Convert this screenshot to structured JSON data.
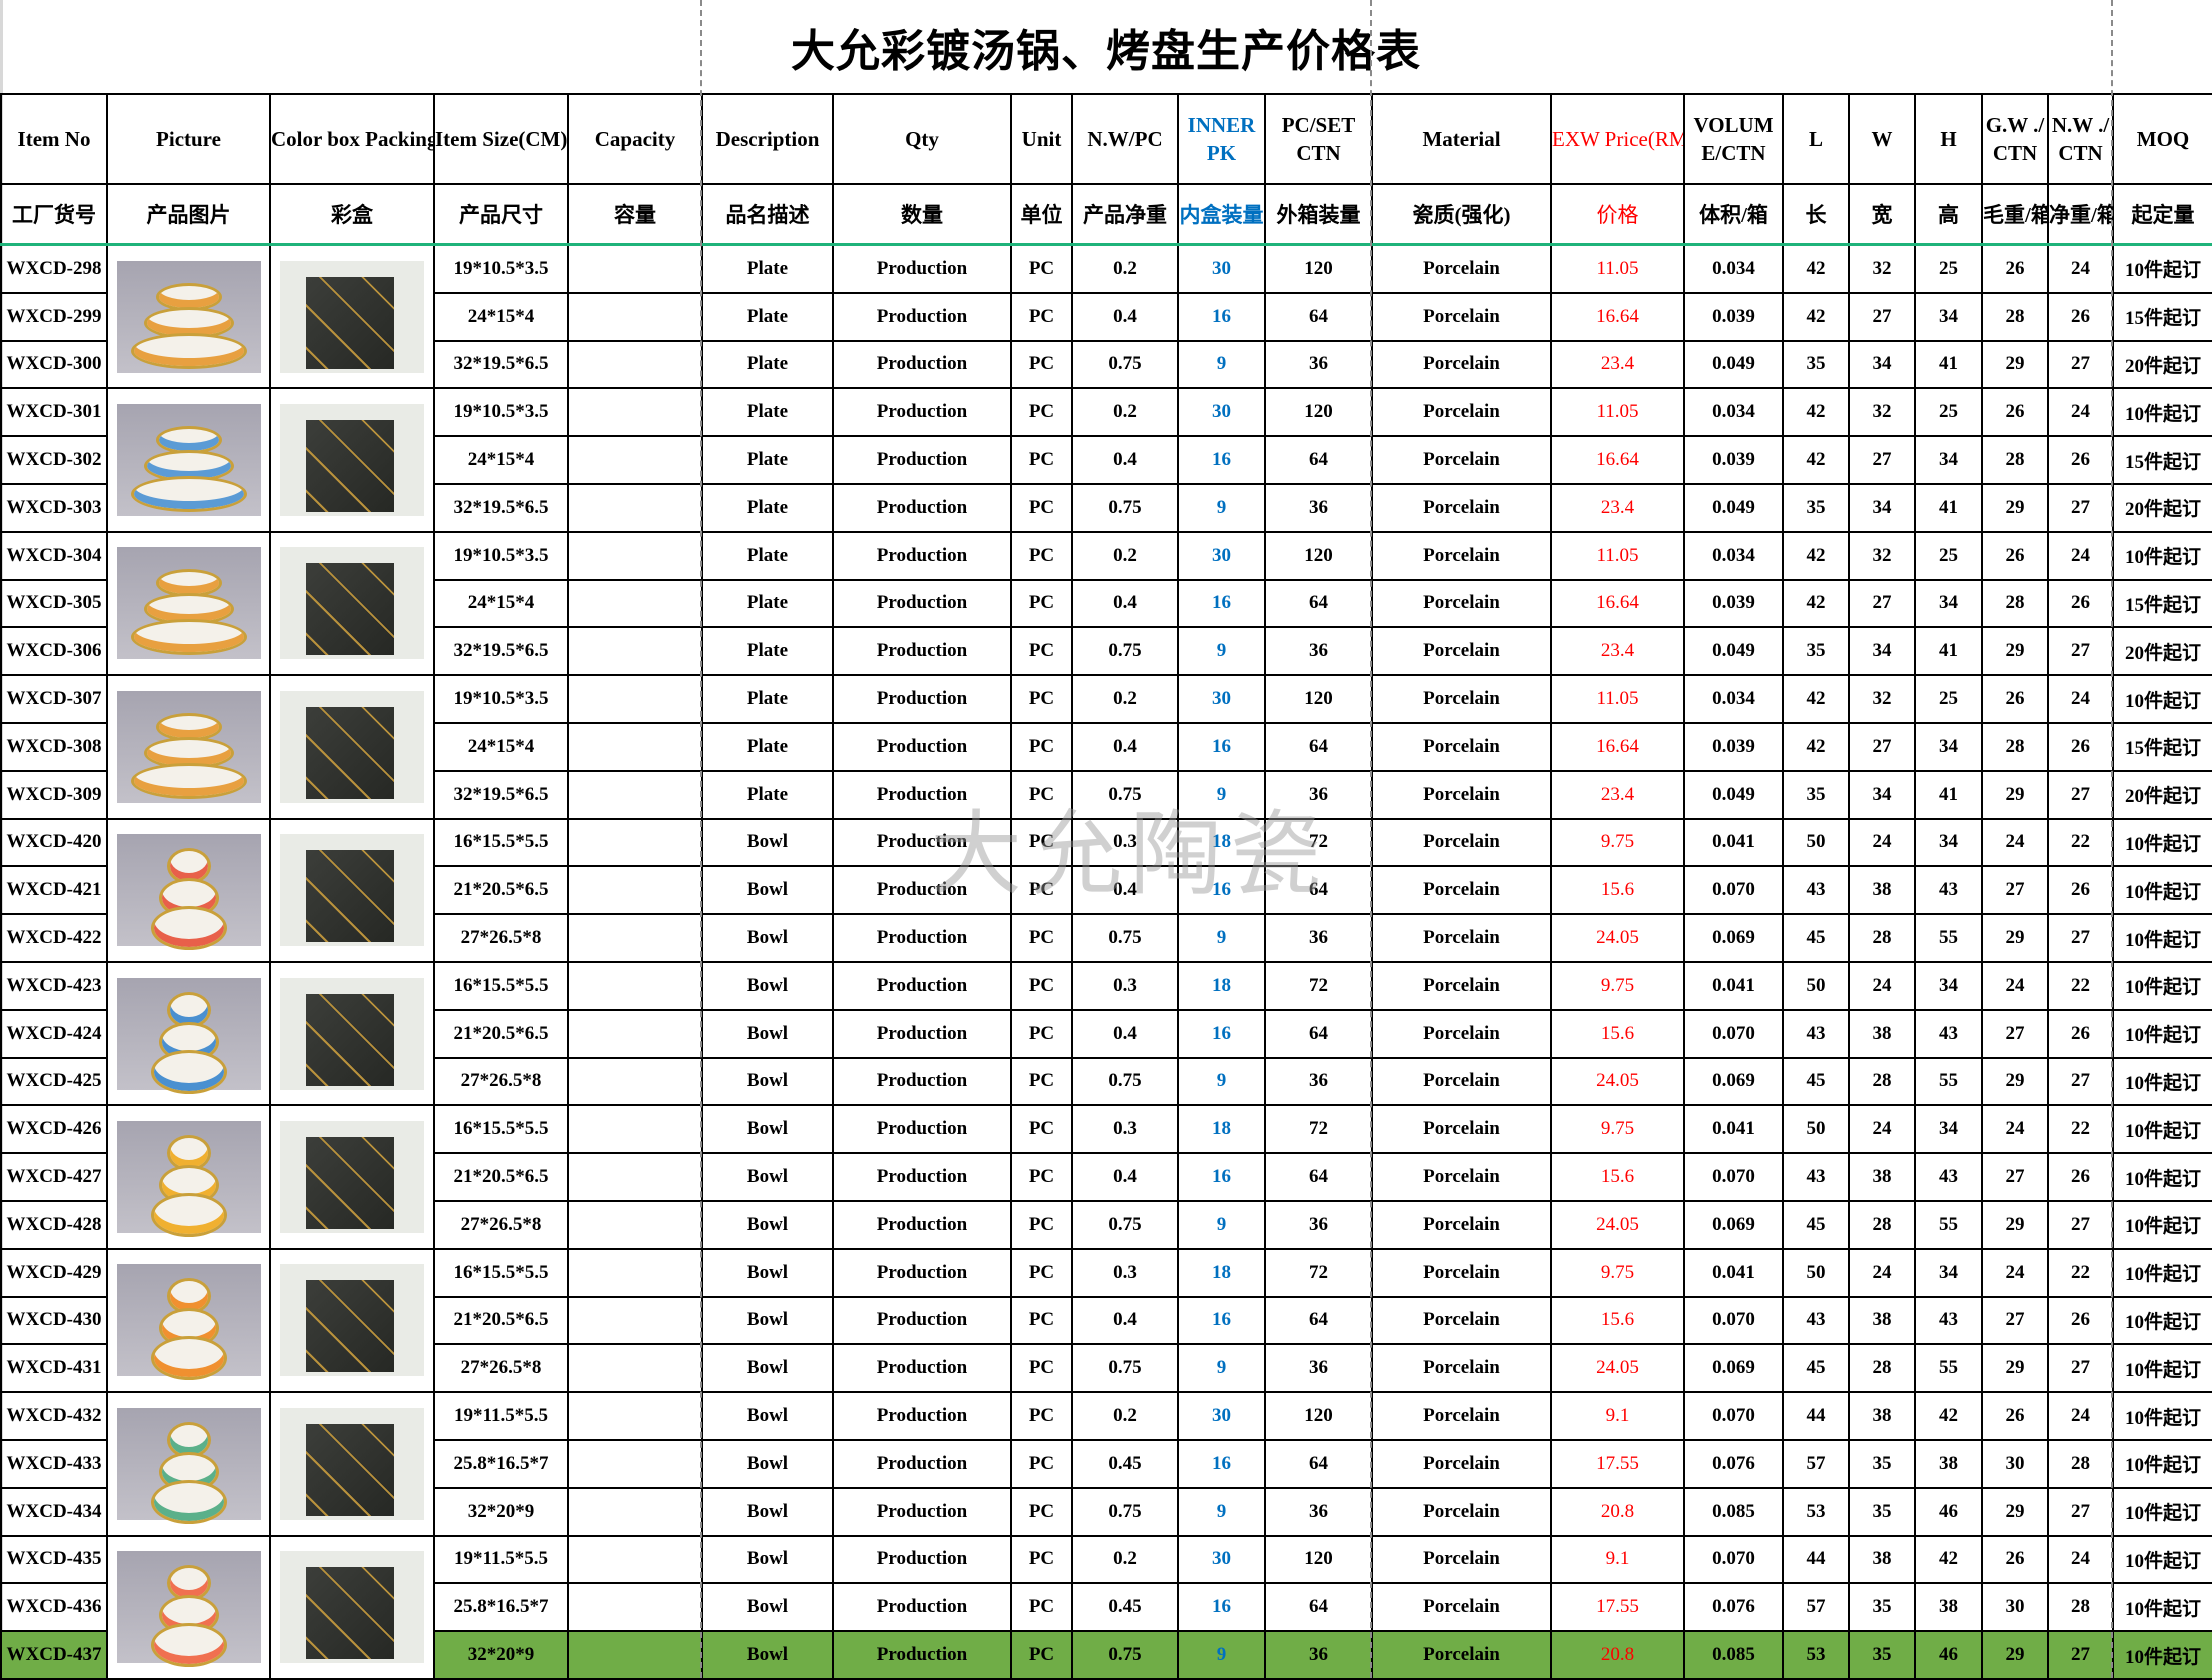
{
  "title": "大允彩镀汤锅、烤盘生产价格表",
  "watermark": "大允陶瓷",
  "colors": {
    "inner_pk": "#0070c0",
    "price": "#ff0000",
    "highlight_row": "#70ad47",
    "header_rule": "#1fb37a"
  },
  "header_en": [
    "Item No",
    "Picture",
    "Color box Packing",
    "Item Size(CM)",
    "Capacity",
    "Description",
    "Qty",
    "Unit",
    "N.W/PC",
    "INNER PK",
    "PC/SET CTN",
    "Material",
    "EXW Price(RMB)",
    "VOLUM E/CTN",
    "L",
    "W",
    "H",
    "G.W ./ CTN",
    "N.W ./ CTN",
    "MOQ"
  ],
  "header_cn": [
    "工厂货号",
    "产品图片",
    "彩盒",
    "产品尺寸",
    "容量",
    "品名描述",
    "数量",
    "单位",
    "产品净重",
    "内盒装量",
    "外箱装量",
    "瓷质(强化)",
    "价格",
    "体积/箱",
    "长",
    "宽",
    "高",
    "毛重/箱",
    "净重/箱",
    "起定量"
  ],
  "picture_groups": [
    {
      "icon": "plate-set-photo",
      "accent": "#e8a040"
    },
    {
      "icon": "plate-set-photo",
      "accent": "#5b9bd5"
    },
    {
      "icon": "plate-set-photo",
      "accent": "#e8a040"
    },
    {
      "icon": "plate-set-photo",
      "accent": "#e8a040"
    },
    {
      "icon": "bowl-set-photo",
      "accent": "#e8604a"
    },
    {
      "icon": "bowl-set-photo",
      "accent": "#4a90d0"
    },
    {
      "icon": "bowl-set-photo",
      "accent": "#f0b030"
    },
    {
      "icon": "bowl-set-photo",
      "accent": "#f09030"
    },
    {
      "icon": "bowl-set-photo",
      "accent": "#5bb08a"
    },
    {
      "icon": "bowl-set-photo",
      "accent": "#f07050"
    },
    {
      "icon": "bowl-set-photo",
      "accent": "#f0b030"
    }
  ],
  "rows": [
    [
      "WXCD-298",
      "19*10.5*3.5",
      "",
      "Plate",
      "Production",
      "PC",
      "0.2",
      "30",
      "120",
      "Porcelain",
      "11.05",
      "0.034",
      "42",
      "32",
      "25",
      "26",
      "24",
      "10件起订"
    ],
    [
      "WXCD-299",
      "24*15*4",
      "",
      "Plate",
      "Production",
      "PC",
      "0.4",
      "16",
      "64",
      "Porcelain",
      "16.64",
      "0.039",
      "42",
      "27",
      "34",
      "28",
      "26",
      "15件起订"
    ],
    [
      "WXCD-300",
      "32*19.5*6.5",
      "",
      "Plate",
      "Production",
      "PC",
      "0.75",
      "9",
      "36",
      "Porcelain",
      "23.4",
      "0.049",
      "35",
      "34",
      "41",
      "29",
      "27",
      "20件起订"
    ],
    [
      "WXCD-301",
      "19*10.5*3.5",
      "",
      "Plate",
      "Production",
      "PC",
      "0.2",
      "30",
      "120",
      "Porcelain",
      "11.05",
      "0.034",
      "42",
      "32",
      "25",
      "26",
      "24",
      "10件起订"
    ],
    [
      "WXCD-302",
      "24*15*4",
      "",
      "Plate",
      "Production",
      "PC",
      "0.4",
      "16",
      "64",
      "Porcelain",
      "16.64",
      "0.039",
      "42",
      "27",
      "34",
      "28",
      "26",
      "15件起订"
    ],
    [
      "WXCD-303",
      "32*19.5*6.5",
      "",
      "Plate",
      "Production",
      "PC",
      "0.75",
      "9",
      "36",
      "Porcelain",
      "23.4",
      "0.049",
      "35",
      "34",
      "41",
      "29",
      "27",
      "20件起订"
    ],
    [
      "WXCD-304",
      "19*10.5*3.5",
      "",
      "Plate",
      "Production",
      "PC",
      "0.2",
      "30",
      "120",
      "Porcelain",
      "11.05",
      "0.034",
      "42",
      "32",
      "25",
      "26",
      "24",
      "10件起订"
    ],
    [
      "WXCD-305",
      "24*15*4",
      "",
      "Plate",
      "Production",
      "PC",
      "0.4",
      "16",
      "64",
      "Porcelain",
      "16.64",
      "0.039",
      "42",
      "27",
      "34",
      "28",
      "26",
      "15件起订"
    ],
    [
      "WXCD-306",
      "32*19.5*6.5",
      "",
      "Plate",
      "Production",
      "PC",
      "0.75",
      "9",
      "36",
      "Porcelain",
      "23.4",
      "0.049",
      "35",
      "34",
      "41",
      "29",
      "27",
      "20件起订"
    ],
    [
      "WXCD-307",
      "19*10.5*3.5",
      "",
      "Plate",
      "Production",
      "PC",
      "0.2",
      "30",
      "120",
      "Porcelain",
      "11.05",
      "0.034",
      "42",
      "32",
      "25",
      "26",
      "24",
      "10件起订"
    ],
    [
      "WXCD-308",
      "24*15*4",
      "",
      "Plate",
      "Production",
      "PC",
      "0.4",
      "16",
      "64",
      "Porcelain",
      "16.64",
      "0.039",
      "42",
      "27",
      "34",
      "28",
      "26",
      "15件起订"
    ],
    [
      "WXCD-309",
      "32*19.5*6.5",
      "",
      "Plate",
      "Production",
      "PC",
      "0.75",
      "9",
      "36",
      "Porcelain",
      "23.4",
      "0.049",
      "35",
      "34",
      "41",
      "29",
      "27",
      "20件起订"
    ],
    [
      "WXCD-420",
      "16*15.5*5.5",
      "",
      "Bowl",
      "Production",
      "PC",
      "0.3",
      "18",
      "72",
      "Porcelain",
      "9.75",
      "0.041",
      "50",
      "24",
      "34",
      "24",
      "22",
      "10件起订"
    ],
    [
      "WXCD-421",
      "21*20.5*6.5",
      "",
      "Bowl",
      "Production",
      "PC",
      "0.4",
      "16",
      "64",
      "Porcelain",
      "15.6",
      "0.070",
      "43",
      "38",
      "43",
      "27",
      "26",
      "10件起订"
    ],
    [
      "WXCD-422",
      "27*26.5*8",
      "",
      "Bowl",
      "Production",
      "PC",
      "0.75",
      "9",
      "36",
      "Porcelain",
      "24.05",
      "0.069",
      "45",
      "28",
      "55",
      "29",
      "27",
      "10件起订"
    ],
    [
      "WXCD-423",
      "16*15.5*5.5",
      "",
      "Bowl",
      "Production",
      "PC",
      "0.3",
      "18",
      "72",
      "Porcelain",
      "9.75",
      "0.041",
      "50",
      "24",
      "34",
      "24",
      "22",
      "10件起订"
    ],
    [
      "WXCD-424",
      "21*20.5*6.5",
      "",
      "Bowl",
      "Production",
      "PC",
      "0.4",
      "16",
      "64",
      "Porcelain",
      "15.6",
      "0.070",
      "43",
      "38",
      "43",
      "27",
      "26",
      "10件起订"
    ],
    [
      "WXCD-425",
      "27*26.5*8",
      "",
      "Bowl",
      "Production",
      "PC",
      "0.75",
      "9",
      "36",
      "Porcelain",
      "24.05",
      "0.069",
      "45",
      "28",
      "55",
      "29",
      "27",
      "10件起订"
    ],
    [
      "WXCD-426",
      "16*15.5*5.5",
      "",
      "Bowl",
      "Production",
      "PC",
      "0.3",
      "18",
      "72",
      "Porcelain",
      "9.75",
      "0.041",
      "50",
      "24",
      "34",
      "24",
      "22",
      "10件起订"
    ],
    [
      "WXCD-427",
      "21*20.5*6.5",
      "",
      "Bowl",
      "Production",
      "PC",
      "0.4",
      "16",
      "64",
      "Porcelain",
      "15.6",
      "0.070",
      "43",
      "38",
      "43",
      "27",
      "26",
      "10件起订"
    ],
    [
      "WXCD-428",
      "27*26.5*8",
      "",
      "Bowl",
      "Production",
      "PC",
      "0.75",
      "9",
      "36",
      "Porcelain",
      "24.05",
      "0.069",
      "45",
      "28",
      "55",
      "29",
      "27",
      "10件起订"
    ],
    [
      "WXCD-429",
      "16*15.5*5.5",
      "",
      "Bowl",
      "Production",
      "PC",
      "0.3",
      "18",
      "72",
      "Porcelain",
      "9.75",
      "0.041",
      "50",
      "24",
      "34",
      "24",
      "22",
      "10件起订"
    ],
    [
      "WXCD-430",
      "21*20.5*6.5",
      "",
      "Bowl",
      "Production",
      "PC",
      "0.4",
      "16",
      "64",
      "Porcelain",
      "15.6",
      "0.070",
      "43",
      "38",
      "43",
      "27",
      "26",
      "10件起订"
    ],
    [
      "WXCD-431",
      "27*26.5*8",
      "",
      "Bowl",
      "Production",
      "PC",
      "0.75",
      "9",
      "36",
      "Porcelain",
      "24.05",
      "0.069",
      "45",
      "28",
      "55",
      "29",
      "27",
      "10件起订"
    ],
    [
      "WXCD-432",
      "19*11.5*5.5",
      "",
      "Bowl",
      "Production",
      "PC",
      "0.2",
      "30",
      "120",
      "Porcelain",
      "9.1",
      "0.070",
      "44",
      "38",
      "42",
      "26",
      "24",
      "10件起订"
    ],
    [
      "WXCD-433",
      "25.8*16.5*7",
      "",
      "Bowl",
      "Production",
      "PC",
      "0.45",
      "16",
      "64",
      "Porcelain",
      "17.55",
      "0.076",
      "57",
      "35",
      "38",
      "30",
      "28",
      "10件起订"
    ],
    [
      "WXCD-434",
      "32*20*9",
      "",
      "Bowl",
      "Production",
      "PC",
      "0.75",
      "9",
      "36",
      "Porcelain",
      "20.8",
      "0.085",
      "53",
      "35",
      "46",
      "29",
      "27",
      "10件起订"
    ],
    [
      "WXCD-435",
      "19*11.5*5.5",
      "",
      "Bowl",
      "Production",
      "PC",
      "0.2",
      "30",
      "120",
      "Porcelain",
      "9.1",
      "0.070",
      "44",
      "38",
      "42",
      "26",
      "24",
      "10件起订"
    ],
    [
      "WXCD-436",
      "25.8*16.5*7",
      "",
      "Bowl",
      "Production",
      "PC",
      "0.45",
      "16",
      "64",
      "Porcelain",
      "17.55",
      "0.076",
      "57",
      "35",
      "38",
      "30",
      "28",
      "10件起订"
    ],
    [
      "WXCD-437",
      "32*20*9",
      "",
      "Bowl",
      "Production",
      "PC",
      "0.75",
      "9",
      "36",
      "Porcelain",
      "20.8",
      "0.085",
      "53",
      "35",
      "46",
      "29",
      "27",
      "10件起订"
    ]
  ],
  "highlighted_row": "WXCD-437"
}
